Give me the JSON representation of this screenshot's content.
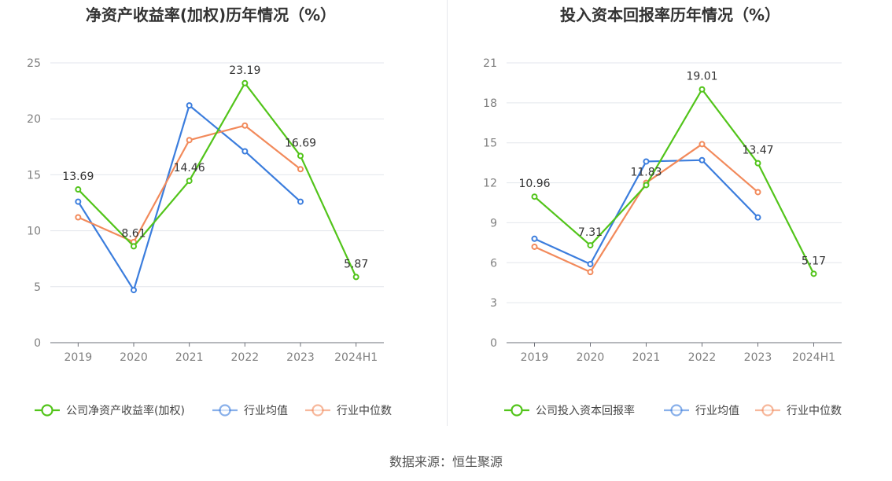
{
  "source": "数据来源：恒生聚源",
  "chart_data": [
    {
      "type": "line",
      "title": "净资产收益率(加权)历年情况（%）",
      "categories": [
        "2019",
        "2020",
        "2021",
        "2022",
        "2023",
        "2024H1"
      ],
      "ylim": [
        0,
        25
      ],
      "yticks": [
        0,
        5,
        10,
        15,
        20,
        25
      ],
      "grid": true,
      "legend_position": "bottom",
      "series": [
        {
          "name": "公司净资产收益率(加权)",
          "color": "#52c41a",
          "values": [
            13.69,
            8.61,
            14.46,
            23.19,
            16.69,
            5.87
          ],
          "labels": [
            "13.69",
            "8.61",
            "14.46",
            "23.19",
            "16.69",
            "5.87"
          ]
        },
        {
          "name": "行业均值",
          "color": "#3b7ddd",
          "values": [
            12.6,
            4.7,
            21.2,
            17.1,
            12.6,
            null
          ]
        },
        {
          "name": "行业中位数",
          "color": "#f28a5b",
          "values": [
            11.2,
            9.0,
            18.1,
            19.4,
            15.5,
            null
          ]
        }
      ]
    },
    {
      "type": "line",
      "title": "投入资本回报率历年情况（%）",
      "categories": [
        "2019",
        "2020",
        "2021",
        "2022",
        "2023",
        "2024H1"
      ],
      "ylim": [
        0,
        21
      ],
      "yticks": [
        0,
        3,
        6,
        9,
        12,
        15,
        18,
        21
      ],
      "grid": true,
      "legend_position": "bottom",
      "series": [
        {
          "name": "公司投入资本回报率",
          "color": "#52c41a",
          "values": [
            10.96,
            7.31,
            11.83,
            19.01,
            13.47,
            5.17
          ],
          "labels": [
            "10.96",
            "7.31",
            "11.83",
            "19.01",
            "13.47",
            "5.17"
          ]
        },
        {
          "name": "行业均值",
          "color": "#3b7ddd",
          "values": [
            7.8,
            5.9,
            13.6,
            13.7,
            9.4,
            null
          ]
        },
        {
          "name": "行业中位数",
          "color": "#f28a5b",
          "values": [
            7.2,
            5.3,
            12.0,
            14.9,
            11.3,
            null
          ]
        }
      ]
    }
  ]
}
